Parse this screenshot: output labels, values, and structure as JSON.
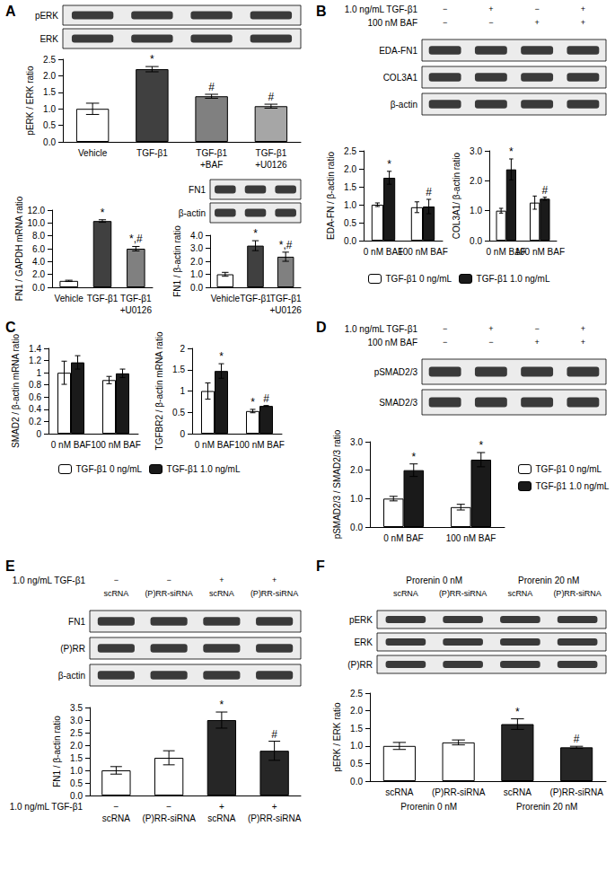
{
  "chart_data": [
    {
      "panel": "A",
      "type": "bar",
      "categories": [
        "Vehicle",
        "TGF-β1",
        "TGF-β1 +BAF",
        "TGF-β1 +U0126"
      ],
      "values": [
        1.0,
        2.2,
        1.38,
        1.08
      ],
      "errors": [
        0.17,
        0.08,
        0.06,
        0.06
      ],
      "annotations": [
        null,
        "*",
        "#",
        "#"
      ],
      "colors": [
        "#ffffff",
        "#404040",
        "#808080",
        "#a6a6a6"
      ],
      "y_label": "pERK / ERK ratio",
      "ylim": [
        0,
        2.5
      ],
      "yticks": [
        {
          "value": 0,
          "label": "0.0"
        },
        0.5,
        {
          "value": 1,
          "label": "1.0"
        },
        1.5,
        {
          "value": 2,
          "label": "2.0"
        },
        2.5
      ],
      "grid": false,
      "blot": {
        "bands": [
          "pERK",
          "ERK"
        ]
      }
    },
    {
      "type": "bar",
      "categories": [
        "Vehicle",
        "TGF-β1",
        "TGF-β1 +U0126"
      ],
      "values": [
        1.0,
        10.3,
        6.0
      ],
      "errors": [
        0.1,
        0.2,
        0.35
      ],
      "annotations": [
        null,
        "*",
        "*,#"
      ],
      "colors": [
        "#ffffff",
        "#404040",
        "#808080"
      ],
      "y_label": "FN1 / GAPDH mRNA ratio",
      "ylim": [
        0,
        12
      ],
      "yticks": [
        {
          "value": 0,
          "label": "0.0"
        },
        {
          "value": 2,
          "label": "2.0"
        },
        {
          "value": 4,
          "label": "4.0"
        },
        {
          "value": 6,
          "label": "6.0"
        },
        {
          "value": 8,
          "label": "8.0"
        },
        {
          "value": 10,
          "label": "10.0"
        },
        {
          "value": 12,
          "label": "12.0"
        }
      ],
      "grid": false
    },
    {
      "type": "bar",
      "categories": [
        "Vehicle",
        "TGF-β1",
        "TGF-β1 +U0126"
      ],
      "values": [
        1.0,
        3.2,
        2.35
      ],
      "errors": [
        0.15,
        0.38,
        0.35
      ],
      "annotations": [
        null,
        "*",
        "*,#"
      ],
      "colors": [
        "#ffffff",
        "#404040",
        "#808080"
      ],
      "y_label": "FN1 / β-actin ratio",
      "ylim": [
        0,
        4
      ],
      "yticks": [
        {
          "value": 0,
          "label": "0.0"
        },
        {
          "value": 1,
          "label": "1.0"
        },
        {
          "value": 2,
          "label": "2.0"
        },
        {
          "value": 3,
          "label": "3.0"
        },
        {
          "value": 4,
          "label": "4.0"
        }
      ],
      "grid": false,
      "blot": {
        "bands": [
          "FN1",
          "β-actin"
        ]
      }
    },
    {
      "panel": "B",
      "type": "bar",
      "categories": [
        "0 nM BAF",
        "100 nM BAF"
      ],
      "series": [
        {
          "name": "TGF-β1 0 ng/mL",
          "color": "#ffffff",
          "values": [
            1.0,
            0.93
          ],
          "errors": [
            0.05,
            0.15
          ],
          "annotations": [
            null,
            null
          ]
        },
        {
          "name": "TGF-β1 1.0 ng/mL",
          "color": "#1a1a1a",
          "values": [
            1.75,
            0.95
          ],
          "errors": [
            0.18,
            0.2
          ],
          "annotations": [
            "*",
            "#"
          ]
        }
      ],
      "y_label": "EDA-FN / β-actin ratio",
      "ylim": [
        0,
        2.5
      ],
      "yticks": [
        {
          "value": 0,
          "label": "0.0"
        },
        0.5,
        {
          "value": 1,
          "label": "1.0"
        },
        1.5,
        {
          "value": 2,
          "label": "2.0"
        },
        2.5
      ],
      "grid": false,
      "blot": {
        "rows": [
          {
            "label": "1.0 ng/mL TGF-β1",
            "values": [
              "−",
              "+",
              "−",
              "+"
            ]
          },
          {
            "label": "100 nM BAF",
            "values": [
              "−",
              "−",
              "+",
              "+"
            ]
          }
        ],
        "bands": [
          "EDA-FN1",
          "COL3A1",
          "β-actin"
        ]
      }
    },
    {
      "type": "bar",
      "categories": [
        "0 nM BAF",
        "100 nM BAF"
      ],
      "series": [
        {
          "name": "TGF-β1 0 ng/mL",
          "color": "#ffffff",
          "values": [
            1.0,
            1.27
          ],
          "errors": [
            0.08,
            0.22
          ],
          "annotations": [
            null,
            null
          ]
        },
        {
          "name": "TGF-β1 1.0 ng/mL",
          "color": "#1a1a1a",
          "values": [
            2.38,
            1.4
          ],
          "errors": [
            0.35,
            0.05
          ],
          "annotations": [
            "*",
            "#"
          ]
        }
      ],
      "y_label": "COL3A1/ β-actin ratio",
      "ylim": [
        0,
        3
      ],
      "yticks": [
        {
          "value": 0,
          "label": "0.0"
        },
        {
          "value": 1,
          "label": "1.0"
        },
        {
          "value": 2,
          "label": "2.0"
        },
        {
          "value": 3,
          "label": "3.0"
        }
      ],
      "grid": false,
      "legend": "bottom"
    },
    {
      "panel": "C",
      "type": "bar",
      "categories": [
        "0 nM BAF",
        "100 nM BAF"
      ],
      "series": [
        {
          "name": "TGF-β1 0 ng/mL",
          "color": "#ffffff",
          "values": [
            1.0,
            0.88
          ],
          "errors": [
            0.19,
            0.06
          ],
          "annotations": [
            null,
            null
          ]
        },
        {
          "name": "TGF-β1 1.0 ng/mL",
          "color": "#1a1a1a",
          "values": [
            1.17,
            0.99
          ],
          "errors": [
            0.11,
            0.07
          ],
          "annotations": [
            null,
            null
          ]
        }
      ],
      "y_label": "SMAD2 / β-actin mRNA ratio",
      "ylim": [
        0,
        1.4
      ],
      "yticks": [
        0,
        0.2,
        0.4,
        0.6,
        0.8,
        1,
        1.2,
        1.4
      ],
      "grid": false
    },
    {
      "type": "bar",
      "categories": [
        "0 nM BAF",
        "100 nM BAF"
      ],
      "series": [
        {
          "name": "TGF-β1 0 ng/mL",
          "color": "#ffffff",
          "values": [
            1.0,
            0.53
          ],
          "errors": [
            0.19,
            0.04
          ],
          "annotations": [
            null,
            "*"
          ]
        },
        {
          "name": "TGF-β1 1.0 ng/mL",
          "color": "#1a1a1a",
          "values": [
            1.47,
            0.65
          ],
          "errors": [
            0.17,
            0.01
          ],
          "annotations": [
            "*",
            "#"
          ]
        }
      ],
      "y_label": "TGFBR2 / β-actin mRNA ratio",
      "ylim": [
        0,
        2
      ],
      "yticks": [
        0,
        0.5,
        1,
        1.5,
        2
      ],
      "grid": false,
      "legend": "bottom"
    },
    {
      "panel": "D",
      "type": "bar",
      "categories": [
        "0 nM BAF",
        "100 nM BAF"
      ],
      "series": [
        {
          "name": "TGF-β1 0 ng/mL",
          "color": "#ffffff",
          "values": [
            1.0,
            0.7
          ],
          "errors": [
            0.08,
            0.1
          ],
          "annotations": [
            null,
            null
          ]
        },
        {
          "name": "TGF-β1 1.0 ng/mL",
          "color": "#1a1a1a",
          "values": [
            2.0,
            2.37
          ],
          "errors": [
            0.22,
            0.25
          ],
          "annotations": [
            "*",
            "*"
          ]
        }
      ],
      "y_label": "pSMAD2/3 / SMAD2/3 ratio",
      "ylim": [
        0,
        3
      ],
      "yticks": [
        {
          "value": 0,
          "label": "0.0"
        },
        {
          "value": 1,
          "label": "1.0"
        },
        {
          "value": 2,
          "label": "2.0"
        },
        {
          "value": 3,
          "label": "3.0"
        }
      ],
      "grid": false,
      "legend": "right",
      "blot": {
        "rows": [
          {
            "label": "1.0 ng/mL TGF-β1",
            "values": [
              "−",
              "+",
              "−",
              "+"
            ]
          },
          {
            "label": "100 nM BAF",
            "values": [
              "−",
              "−",
              "+",
              "+"
            ]
          }
        ],
        "bands": [
          "pSMAD2/3",
          "SMAD2/3"
        ]
      }
    },
    {
      "panel": "E",
      "type": "bar",
      "categories": [
        "scRNA",
        "(P)RR-siRNA",
        "scRNA",
        "(P)RR-siRNA"
      ],
      "x_conditions": [
        {
          "label": "1.0 ng/mL TGF-β1",
          "values": [
            "−",
            "−",
            "+",
            "+"
          ]
        }
      ],
      "values": [
        1.0,
        1.5,
        3.0,
        1.78
      ],
      "errors": [
        0.15,
        0.28,
        0.32,
        0.38
      ],
      "annotations": [
        null,
        null,
        "*",
        "#"
      ],
      "colors": [
        "#ffffff",
        "#ffffff",
        "#262626",
        "#262626"
      ],
      "y_label": "FN1 / β-actin ratio",
      "ylim": [
        0,
        3.5
      ],
      "yticks": [
        {
          "value": 0,
          "label": "0.0"
        },
        0.5,
        {
          "value": 1,
          "label": "1.0"
        },
        1.5,
        {
          "value": 2,
          "label": "2.0"
        },
        2.5,
        {
          "value": 3,
          "label": "3.0"
        },
        3.5
      ],
      "grid": false,
      "blot": {
        "rows": [
          {
            "label": "1.0 ng/mL TGF-β1",
            "values": [
              "−",
              "−",
              "+",
              "+"
            ]
          },
          {
            "values": [
              "scRNA",
              "(P)RR-siRNA",
              "scRNA",
              "(P)RR-siRNA"
            ]
          }
        ],
        "bands": [
          "FN1",
          "(P)RR",
          "β-actin"
        ]
      }
    },
    {
      "panel": "F",
      "type": "bar",
      "categories": [
        "scRNA",
        "(P)RR-siRNA",
        "scRNA",
        "(P)RR-siRNA"
      ],
      "x_groups": [
        "Prorenin 0 nM",
        "Prorenin 0 nM",
        "Prorenin 20 nM",
        "Prorenin 20 nM"
      ],
      "values": [
        1.0,
        1.1,
        1.62,
        0.96
      ],
      "errors": [
        0.1,
        0.07,
        0.15,
        0.03
      ],
      "annotations": [
        null,
        null,
        "*",
        "#"
      ],
      "colors": [
        "#ffffff",
        "#ffffff",
        "#262626",
        "#262626"
      ],
      "y_label": "pERK / ERK ratio",
      "ylim": [
        0,
        2.5
      ],
      "yticks": [
        {
          "value": 0,
          "label": "0.0"
        },
        0.5,
        {
          "value": 1,
          "label": "1.0"
        },
        1.5,
        {
          "value": 2,
          "label": "2.0"
        },
        2.5
      ],
      "grid": false,
      "blot": {
        "rows": [
          {
            "values": [
              "Prorenin 0 nM",
              "Prorenin 20 nM"
            ]
          },
          {
            "values": [
              "scRNA",
              "(P)RR-siRNA",
              "scRNA",
              "(P)RR-siRNA"
            ]
          }
        ],
        "bands": [
          "pERK",
          "ERK",
          "(P)RR"
        ]
      }
    }
  ]
}
